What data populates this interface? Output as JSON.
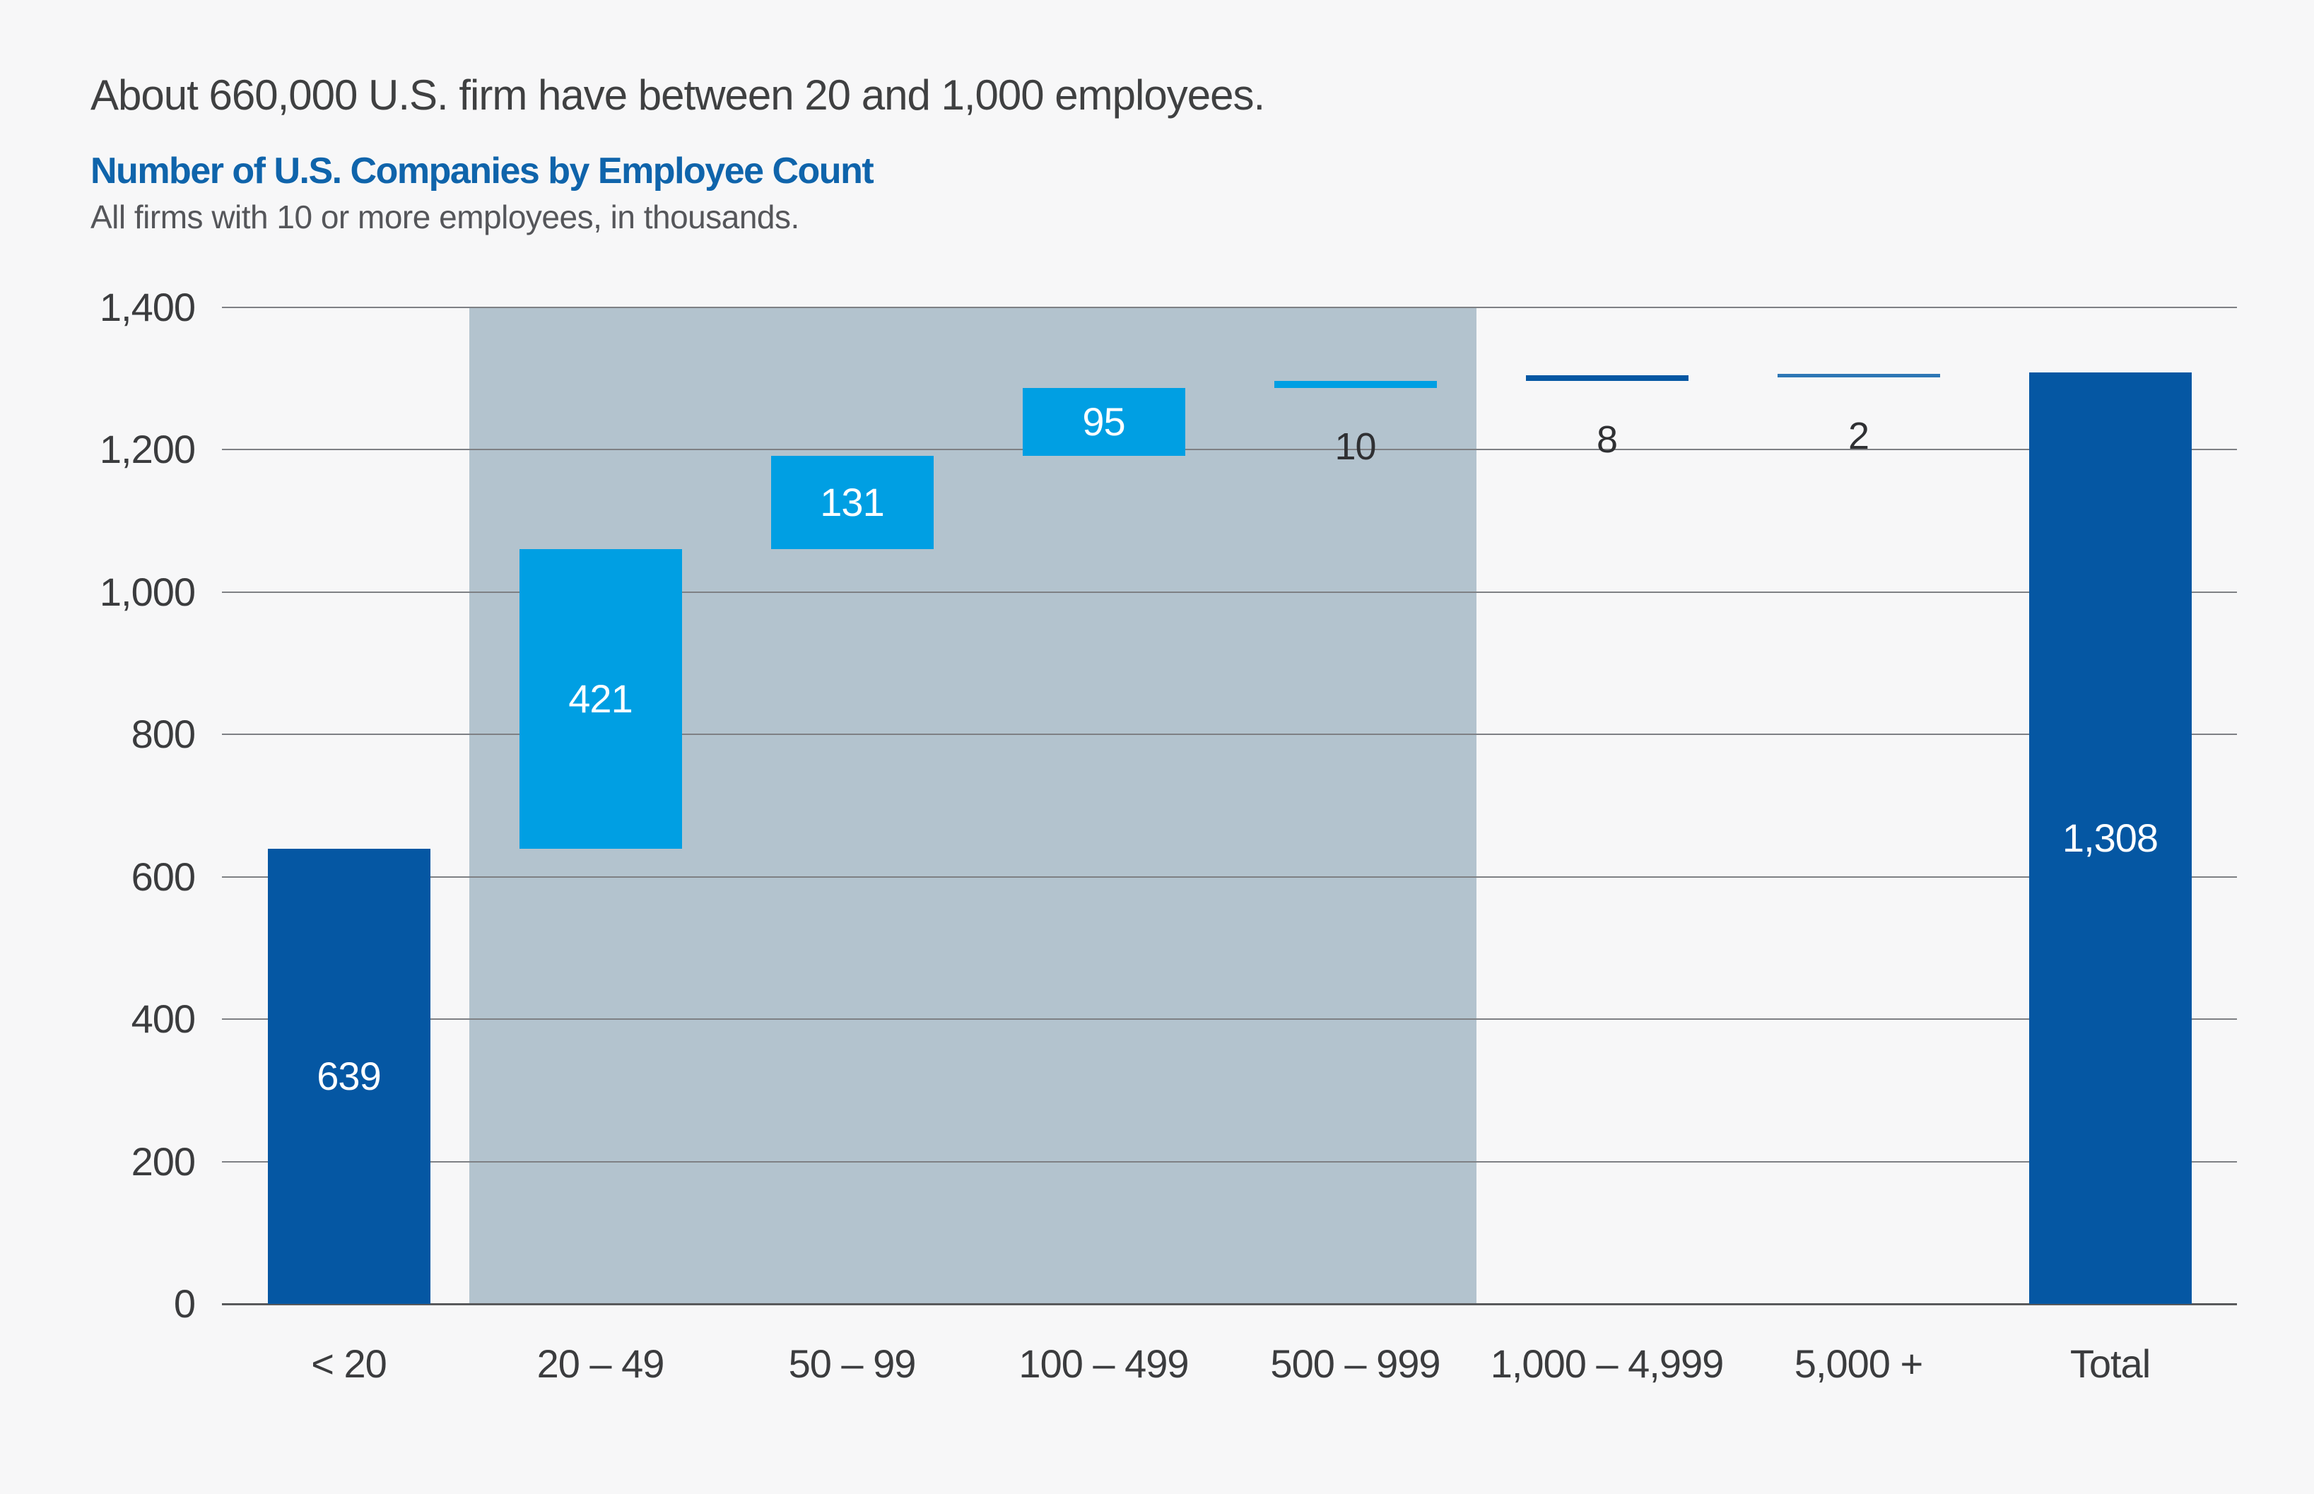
{
  "page": {
    "background": "#f7f7f8"
  },
  "header": {
    "kicker": "About 660,000 U.S. firm have between 20 and 1,000 employees.",
    "title": "Number of U.S. Companies by Employee Count",
    "subtitle": "All firms with 10 or more employees, in thousands.",
    "title_color": "#0f64ab",
    "kicker_color": "#3f4041",
    "subtitle_color": "#55565a"
  },
  "chart_data": {
    "type": "bar",
    "subtype": "waterfall",
    "title": "Number of U.S. Companies by Employee Count",
    "subtitle": "All firms with 10 or more employees, in thousands.",
    "units": "thousands of firms",
    "xlabel": "",
    "ylabel": "",
    "ylim": [
      0,
      1400
    ],
    "grid": true,
    "legend_position": "none",
    "yticks": [
      {
        "value": 0,
        "label": "0"
      },
      {
        "value": 200,
        "label": "200"
      },
      {
        "value": 400,
        "label": "400"
      },
      {
        "value": 600,
        "label": "600"
      },
      {
        "value": 800,
        "label": "800"
      },
      {
        "value": 1000,
        "label": "1,000"
      },
      {
        "value": 1200,
        "label": "1,200"
      },
      {
        "value": 1400,
        "label": "1,400"
      }
    ],
    "categories": [
      "< 20",
      "20 – 49",
      "50 – 99",
      "100 – 499",
      "500 – 999",
      "1,000 – 4,999",
      "5,000 +",
      "Total"
    ],
    "bars": [
      {
        "label": "< 20",
        "start": 0,
        "end": 639,
        "value": 639,
        "value_label": "639",
        "color_key": "dark",
        "label_position": "inside"
      },
      {
        "label": "20 – 49",
        "start": 639,
        "end": 1060,
        "value": 421,
        "value_label": "421",
        "color_key": "light",
        "label_position": "inside"
      },
      {
        "label": "50 – 99",
        "start": 1060,
        "end": 1191,
        "value": 131,
        "value_label": "131",
        "color_key": "light",
        "label_position": "inside"
      },
      {
        "label": "100 – 499",
        "start": 1191,
        "end": 1286,
        "value": 95,
        "value_label": "95",
        "color_key": "light",
        "label_position": "inside"
      },
      {
        "label": "500 – 999",
        "start": 1286,
        "end": 1296,
        "value": 10,
        "value_label": "10",
        "color_key": "light",
        "label_position": "below"
      },
      {
        "label": "1,000 – 4,999",
        "start": 1296,
        "end": 1304,
        "value": 8,
        "value_label": "8",
        "color_key": "dark",
        "label_position": "below"
      },
      {
        "label": "5,000 +",
        "start": 1304,
        "end": 1306,
        "value": 2,
        "value_label": "2",
        "color_key": "medium",
        "label_position": "below"
      },
      {
        "label": "Total",
        "start": 0,
        "end": 1308,
        "value": 1308,
        "value_label": "1,308",
        "color_key": "dark",
        "label_position": "inside"
      }
    ],
    "highlight_band": {
      "from_category": "20 – 49",
      "to_category": "500 – 999",
      "color": "#b3c3ce"
    },
    "colors": {
      "dark": "#0557a3",
      "light": "#009fe3",
      "medium": "#2d77b5",
      "gridline": "#7e8084",
      "baseline": "#595a5c"
    }
  }
}
